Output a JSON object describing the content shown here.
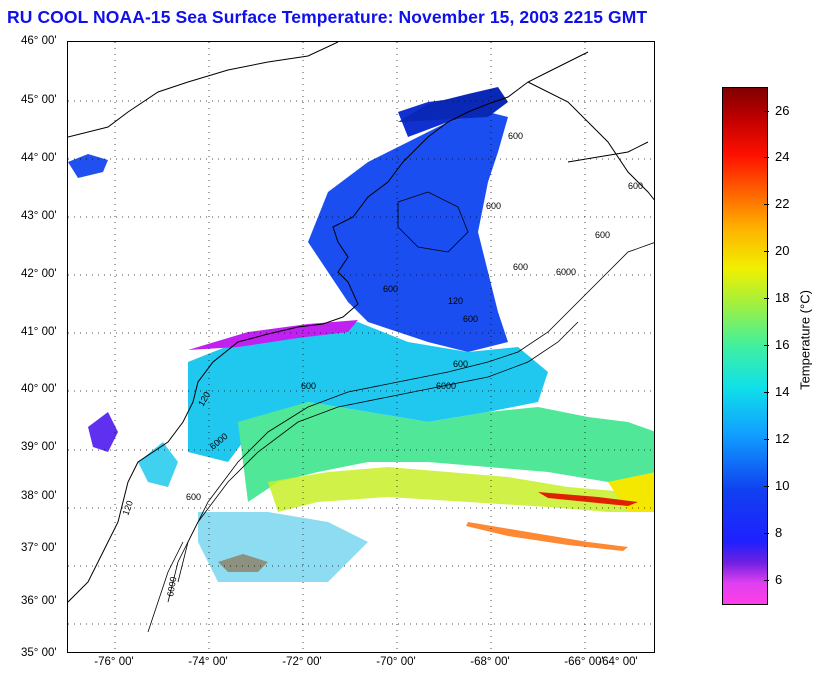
{
  "title": "RU COOL  NOAA-15  Sea Surface Temperature:  November 15, 2003 2215 GMT",
  "map": {
    "lat_labels": [
      "46° 00'",
      "45° 00'",
      "44° 00'",
      "43° 00'",
      "42° 00'",
      "41° 00'",
      "40° 00'",
      "39° 00'",
      "38° 00'",
      "37° 00'",
      "36° 00'",
      "35° 00'"
    ],
    "lon_labels": [
      "-76° 00'",
      "-74° 00'",
      "-72° 00'",
      "-70° 00'",
      "-68° 00'",
      "-66° 00'",
      "-64° 00'"
    ],
    "lat_range": [
      35,
      46
    ],
    "lon_range": [
      -77,
      -64.5
    ],
    "contour_labels": [
      "600",
      "600",
      "600",
      "600",
      "600",
      "600",
      "6000",
      "6000",
      "600",
      "120",
      "600",
      "6000",
      "600",
      "120",
      "6000",
      "600",
      "120"
    ]
  },
  "colorbar": {
    "title": "Temperature (°C)",
    "min": 5,
    "max": 27,
    "ticks": [
      "26",
      "24",
      "22",
      "20",
      "18",
      "16",
      "14",
      "12",
      "10",
      "8",
      "6"
    ],
    "colors": {
      "low": "#ff3ee8",
      "cold": "#2020ff",
      "mid": "#10e0e8",
      "warm": "#f0f000",
      "hot": "#ff1000",
      "max": "#800000"
    }
  }
}
